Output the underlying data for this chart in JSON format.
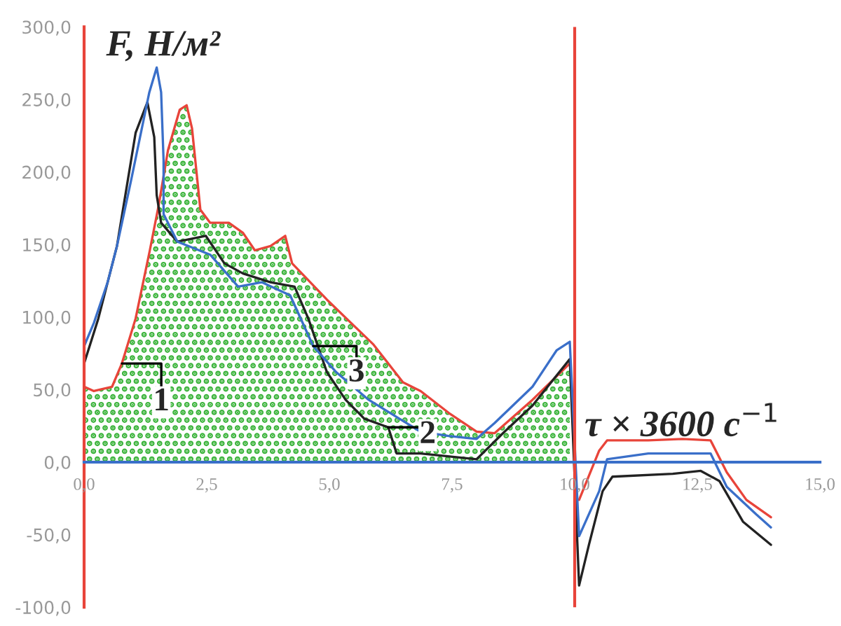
{
  "chart_data": {
    "type": "line",
    "xlabel": "τ × 3600 c$^{−1}$",
    "ylabel": "F, Н/м²",
    "xlim": [
      0,
      15
    ],
    "ylim": [
      -100,
      300
    ],
    "xticks": [
      {
        "value": 0,
        "label": "0,0"
      },
      {
        "value": 2.5,
        "label": "2,5"
      },
      {
        "value": 5,
        "label": "5,0"
      },
      {
        "value": 7.5,
        "label": "7,5"
      },
      {
        "value": 10,
        "label": "10,0"
      },
      {
        "value": 12.5,
        "label": "12,5"
      },
      {
        "value": 15,
        "label": "15,0"
      }
    ],
    "yticks": [
      {
        "value": -100,
        "label": "-100,0"
      },
      {
        "value": -50,
        "label": "-50,0"
      },
      {
        "value": 0,
        "label": "0,0"
      },
      {
        "value": 50,
        "label": "50,0"
      },
      {
        "value": 100,
        "label": "100,0"
      },
      {
        "value": 150,
        "label": "150,0"
      },
      {
        "value": 200,
        "label": "200,0"
      },
      {
        "value": 250,
        "label": "250,0"
      },
      {
        "value": 300,
        "label": "300,0"
      }
    ],
    "grid": false,
    "legend": false,
    "ref_lines": [
      {
        "axis": "x",
        "value": 10,
        "color": "#e8443a"
      }
    ],
    "annotations": [
      {
        "text": "1",
        "x": 0.77,
        "y": 68
      },
      {
        "text": "2",
        "x": 6.2,
        "y": 24
      },
      {
        "text": "3",
        "x": 4.67,
        "y": 80
      }
    ],
    "series": [
      {
        "type": "area",
        "color": "#e8443a",
        "x": [
          0,
          0.2,
          0.57,
          0.77,
          1.05,
          1.34,
          1.52,
          1.71,
          1.95,
          2.09,
          2.2,
          2.37,
          2.57,
          2.95,
          3.24,
          3.48,
          3.8,
          4.1,
          4.24,
          4.95,
          5.9,
          6.5,
          6.86,
          7.43,
          8.0,
          8.37,
          9.14,
          9.9
        ],
        "values": [
          52,
          49,
          52,
          68,
          99,
          146,
          177,
          215,
          243,
          246,
          230,
          174,
          165,
          165,
          158,
          146,
          149,
          156,
          137,
          112,
          81,
          55,
          49,
          34,
          21,
          20,
          43,
          68
        ]
      },
      {
        "color": "#e8443a",
        "x": [
          10.09,
          10.5,
          10.66,
          11.5,
          12.2,
          12.77,
          13.1,
          13.5,
          14.0
        ],
        "values": [
          -26,
          8,
          15,
          15,
          16,
          15,
          -7,
          -26,
          -38
        ]
      },
      {
        "color": "#222222",
        "x": [
          0,
          0.29,
          0.67,
          1.05,
          1.29,
          1.43,
          1.48,
          1.57,
          1.9,
          2.48,
          2.86,
          3.24,
          3.8,
          4.29,
          4.57,
          4.95,
          5.33,
          5.71,
          6.2,
          6.37,
          6.86,
          8.0,
          8.57,
          9.14,
          9.9,
          10.09,
          10.29,
          10.57,
          10.77,
          12.0,
          12.57,
          12.95,
          13.43,
          14.0
        ],
        "values": [
          68,
          99,
          149,
          227,
          248,
          224,
          184,
          165,
          152,
          156,
          137,
          130,
          124,
          121,
          99,
          62,
          43,
          30,
          24,
          6,
          6,
          2,
          21,
          39,
          71,
          -85,
          -57,
          -20,
          -10,
          -8,
          -6,
          -13,
          -41,
          -57
        ]
      },
      {
        "color": "#3a6fc9",
        "x": [
          0,
          0.2,
          0.48,
          0.67,
          0.95,
          1.14,
          1.33,
          1.48,
          1.57,
          1.62,
          1.62,
          1.9,
          2.57,
          3.14,
          3.62,
          4.2,
          4.67,
          5.14,
          5.8,
          6.57,
          6.86,
          7.43,
          8.0,
          8.37,
          9.14,
          9.63,
          9.9,
          10.09,
          10.5,
          10.66,
          11.5,
          12.77,
          13.1,
          13.7,
          14.0
        ],
        "values": [
          80,
          96,
          124,
          149,
          193,
          224,
          255,
          272,
          255,
          208,
          171,
          152,
          143,
          121,
          124,
          115,
          80,
          62,
          43,
          27,
          21,
          18,
          16,
          27,
          52,
          77,
          83,
          -51,
          -20,
          2,
          6,
          6,
          -17,
          -36,
          -45
        ]
      }
    ]
  }
}
